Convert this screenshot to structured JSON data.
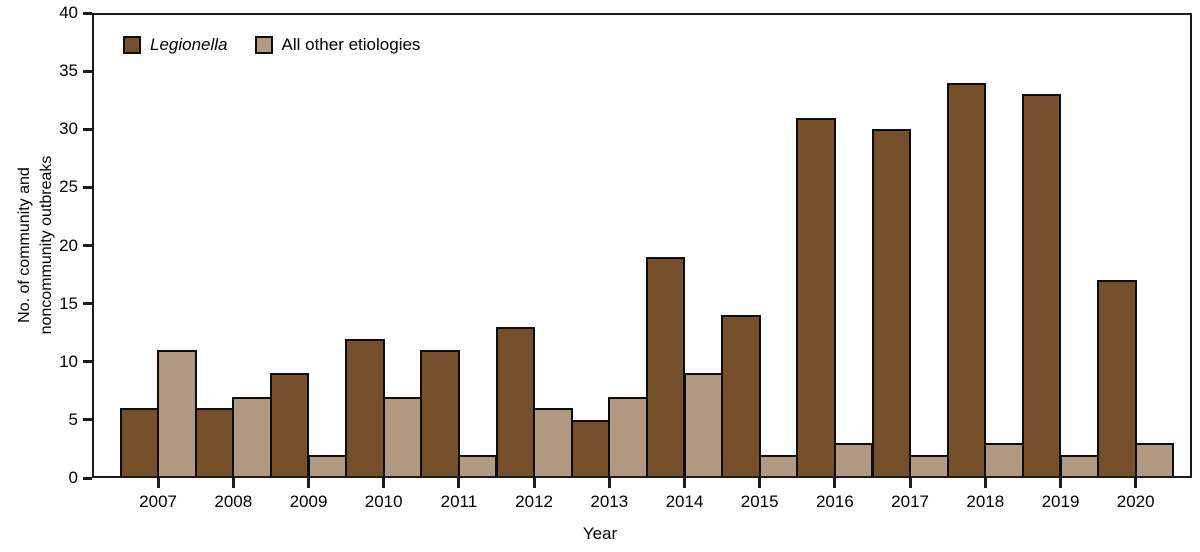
{
  "chart_data": {
    "type": "bar",
    "title": "",
    "xlabel": "Year",
    "ylabel": "No. of community and noncommunity outbreaks",
    "ylabel_lines": [
      "No. of community and",
      "noncommunity outbreaks"
    ],
    "categories": [
      "2007",
      "2008",
      "2009",
      "2010",
      "2011",
      "2012",
      "2013",
      "2014",
      "2015",
      "2016",
      "2017",
      "2018",
      "2019",
      "2020"
    ],
    "series": [
      {
        "name": "Legionella",
        "italic": true,
        "color": "#76502A",
        "values": [
          6,
          6,
          9,
          12,
          11,
          13,
          5,
          19,
          14,
          31,
          30,
          34,
          33,
          17
        ]
      },
      {
        "name": "All other etiologies",
        "italic": false,
        "color": "#B29A82",
        "values": [
          11,
          7,
          2,
          7,
          2,
          6,
          7,
          9,
          2,
          3,
          2,
          3,
          2,
          3
        ]
      }
    ],
    "ylim": [
      0,
      40
    ],
    "ytick_step": 5,
    "yticks": [
      0,
      5,
      10,
      15,
      20,
      25,
      30,
      35,
      40
    ],
    "legend_position": "top-left",
    "grid": false,
    "bar_border_color": "#0d0d0d",
    "frame_color": "#1c1c1c"
  }
}
